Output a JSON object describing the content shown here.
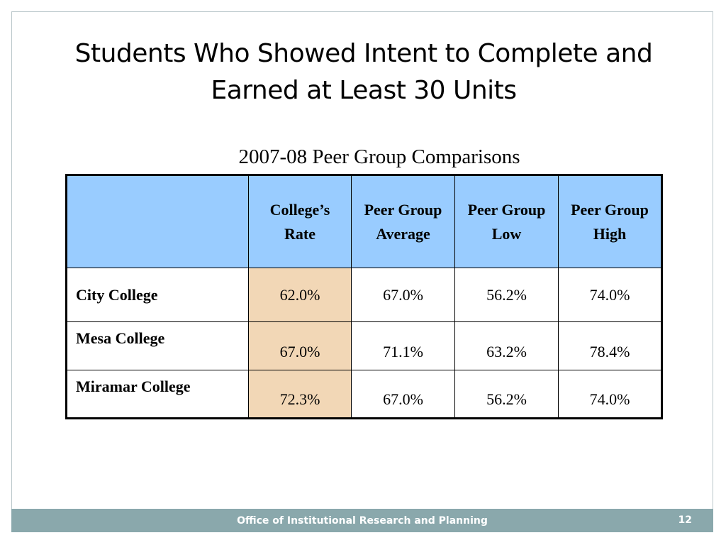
{
  "slide": {
    "title_line1": "Students Who Showed Intent to Complete and",
    "title_line2": "Earned at Least 30 Units",
    "subtitle": "2007-08 Peer Group Comparisons"
  },
  "table": {
    "headers": [
      "",
      "College’s Rate",
      "Peer Group Average",
      "Peer Group Low",
      "Peer Group High"
    ],
    "rows": [
      {
        "college": "City College",
        "rate": "62.0%",
        "avg": "67.0%",
        "low": "56.2%",
        "high": "74.0%"
      },
      {
        "college": "Mesa College",
        "rate": "67.0%",
        "avg": "71.1%",
        "low": "63.2%",
        "high": "78.4%"
      },
      {
        "college": "Miramar College",
        "rate": "72.3%",
        "avg": "67.0%",
        "low": "56.2%",
        "high": "74.0%"
      }
    ]
  },
  "footer": {
    "org": "Office of Institutional Research and Planning",
    "page_number": "12"
  },
  "colors": {
    "header_bg": "#99ccff",
    "rate_highlight": "#f2d7b6",
    "footer_bg": "#8aa8ac"
  }
}
